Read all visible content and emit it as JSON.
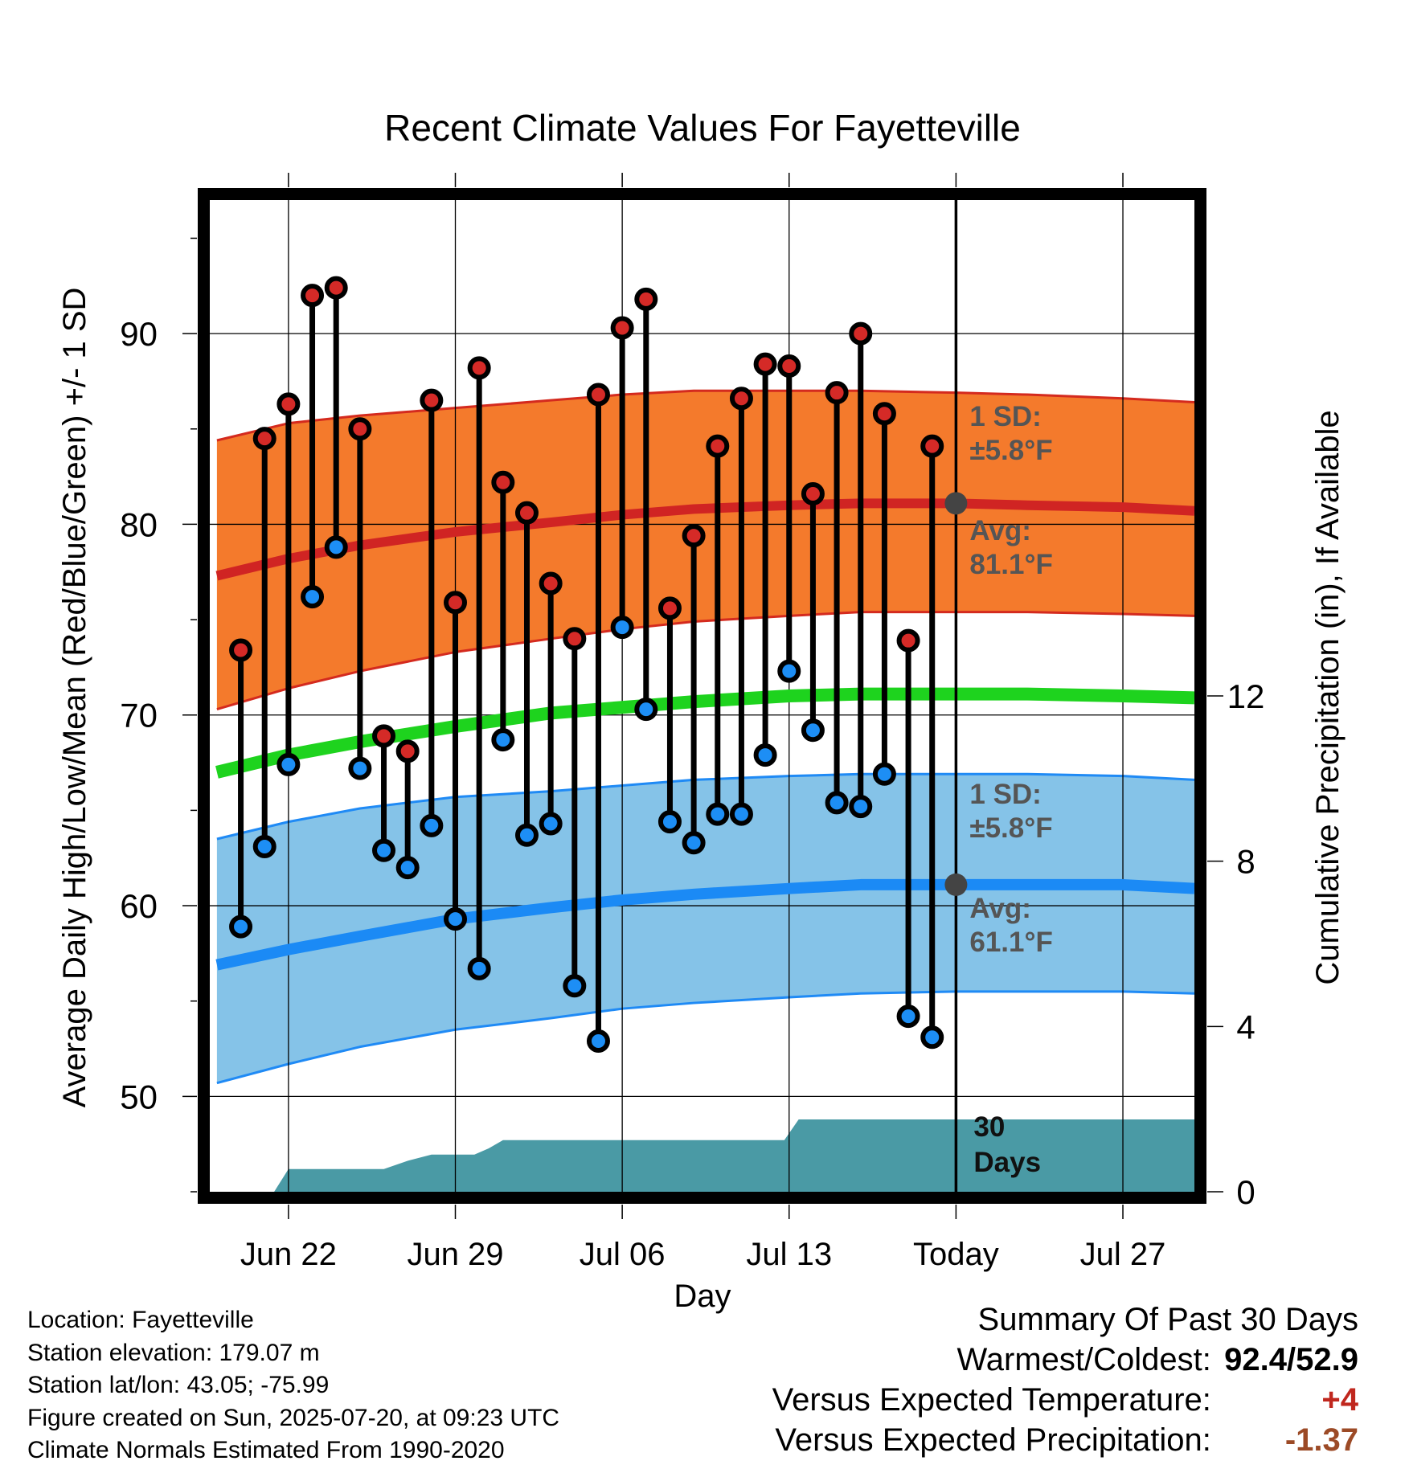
{
  "colors": {
    "high_band": "#f47a2c",
    "high_band_edge": "#d42a1e",
    "high_mean": "#d02423",
    "low_band": "#85c3e8",
    "low_band_edge": "#1f8af5",
    "low_mean": "#1b8af5",
    "mean_line": "#1ed31e",
    "precip_fill": "#4a9aa5",
    "high_dot": "#d52a27",
    "low_dot": "#1d8ef5",
    "annotation": "#555555",
    "avg_marker": "#444444",
    "warm_value": "#c0271e",
    "precip_value": "#9c4a26"
  },
  "chart_data": {
    "type": "line",
    "title": "Recent Climate Values For Fayetteville",
    "xlabel": "Day",
    "ylabel": "Average Daily High/Low/Mean (Red/Blue/Green) +/- 1 SD",
    "y2label": "Cumulative Precipitation (in), If Available",
    "ylim": [
      45,
      97
    ],
    "y2lim": [
      0,
      24
    ],
    "yticks": [
      50,
      60,
      70,
      80,
      90
    ],
    "y2ticks": [
      0,
      4,
      8,
      12
    ],
    "xlim": [
      -3.3,
      38
    ],
    "today_index": 28,
    "x_ticks": [
      {
        "x": 0,
        "label": "Jun 22"
      },
      {
        "x": 7,
        "label": "Jun 29"
      },
      {
        "x": 14,
        "label": "Jul 06"
      },
      {
        "x": 21,
        "label": "Jul 13"
      },
      {
        "x": 28,
        "label": "Today"
      },
      {
        "x": 35,
        "label": "Jul 27"
      }
    ],
    "daily": {
      "x": [
        -2,
        -1,
        0,
        1,
        2,
        3,
        4,
        5,
        6,
        7,
        8,
        9,
        10,
        11,
        12,
        13,
        14,
        15,
        16,
        17,
        18,
        19,
        20,
        21,
        22,
        23,
        24,
        25,
        26,
        27
      ],
      "high": [
        73.4,
        84.5,
        86.3,
        92.0,
        92.4,
        85.0,
        68.9,
        68.1,
        86.5,
        75.9,
        88.2,
        82.2,
        80.6,
        76.9,
        74.0,
        86.8,
        90.3,
        91.8,
        75.6,
        79.4,
        84.1,
        86.6,
        88.4,
        88.3,
        81.6,
        86.9,
        90.0,
        85.8,
        73.9,
        84.1
      ],
      "low": [
        58.9,
        63.1,
        67.4,
        76.2,
        78.8,
        67.2,
        62.9,
        62.0,
        64.2,
        59.3,
        56.7,
        68.7,
        63.7,
        64.3,
        55.8,
        52.9,
        74.6,
        70.3,
        64.4,
        63.3,
        64.8,
        64.8,
        67.9,
        72.3,
        69.2,
        65.4,
        65.2,
        66.9,
        54.2,
        53.1
      ]
    },
    "normals": {
      "x": [
        -3,
        0,
        3,
        7,
        11,
        14,
        17,
        21,
        24,
        28,
        31,
        35,
        38
      ],
      "high_mean": [
        77.3,
        78.2,
        78.9,
        79.6,
        80.1,
        80.5,
        80.8,
        81.0,
        81.1,
        81.1,
        81.0,
        80.9,
        80.7
      ],
      "high_upper": [
        84.4,
        85.3,
        85.7,
        86.1,
        86.5,
        86.8,
        87.0,
        87.0,
        87.0,
        86.9,
        86.8,
        86.6,
        86.4
      ],
      "high_lower": [
        70.3,
        71.4,
        72.3,
        73.3,
        74.0,
        74.5,
        74.9,
        75.2,
        75.4,
        75.4,
        75.4,
        75.3,
        75.2
      ],
      "mean": [
        67.0,
        67.9,
        68.6,
        69.4,
        70.1,
        70.4,
        70.7,
        71.0,
        71.1,
        71.1,
        71.1,
        71.0,
        70.9
      ],
      "low_mean": [
        56.9,
        57.7,
        58.4,
        59.3,
        59.9,
        60.3,
        60.6,
        60.9,
        61.1,
        61.1,
        61.1,
        61.1,
        60.9
      ],
      "low_upper": [
        63.5,
        64.4,
        65.1,
        65.7,
        66.0,
        66.3,
        66.6,
        66.8,
        66.9,
        66.9,
        66.9,
        66.8,
        66.6
      ],
      "low_lower": [
        50.7,
        51.7,
        52.6,
        53.5,
        54.1,
        54.6,
        54.9,
        55.2,
        55.4,
        55.5,
        55.5,
        55.5,
        55.4
      ]
    },
    "precip_cumulative": {
      "x": [
        -3.3,
        -0.6,
        0,
        2,
        3,
        4,
        5,
        6,
        7,
        7.8,
        8.4,
        9,
        10,
        11,
        13,
        14,
        15,
        16,
        17,
        18,
        19,
        20,
        20.8,
        21.4,
        23,
        24,
        25,
        26,
        27,
        28,
        38
      ],
      "y": [
        0,
        0,
        0.55,
        0.55,
        0.55,
        0.55,
        0.75,
        0.9,
        0.9,
        0.9,
        1.05,
        1.25,
        1.25,
        1.25,
        1.25,
        1.25,
        1.25,
        1.25,
        1.25,
        1.25,
        1.25,
        1.25,
        1.25,
        1.75,
        1.75,
        1.75,
        1.75,
        1.75,
        1.75,
        1.75,
        1.75
      ]
    },
    "annotations": {
      "high_sd_label": "1 SD:",
      "high_sd_value": "±5.8°F",
      "high_avg_label": "Avg:",
      "high_avg_value": "81.1°F",
      "low_sd_label": "1 SD:",
      "low_sd_value": "±5.8°F",
      "low_avg_label": "Avg:",
      "low_avg_value": "61.1°F",
      "days_line1": "30",
      "days_line2": "Days"
    },
    "high_avg_today": 81.1,
    "low_avg_today": 61.1
  },
  "footer": {
    "location": "Location: Fayetteville",
    "elevation": "Station elevation: 179.07 m",
    "latlon": "Station lat/lon: 43.05; -75.99",
    "created": "Figure created on Sun, 2025-07-20, at 09:23 UTC",
    "normals": "Climate Normals Estimated From 1990-2020"
  },
  "summary": {
    "heading": "Summary Of Past 30 Days",
    "warm_cold_label": "Warmest/Coldest:",
    "warm_cold_value": "92.4/52.9",
    "temp_label": "Versus Expected Temperature:",
    "temp_value": "+4",
    "precip_label": "Versus Expected Precipitation:",
    "precip_value": "-1.37"
  }
}
